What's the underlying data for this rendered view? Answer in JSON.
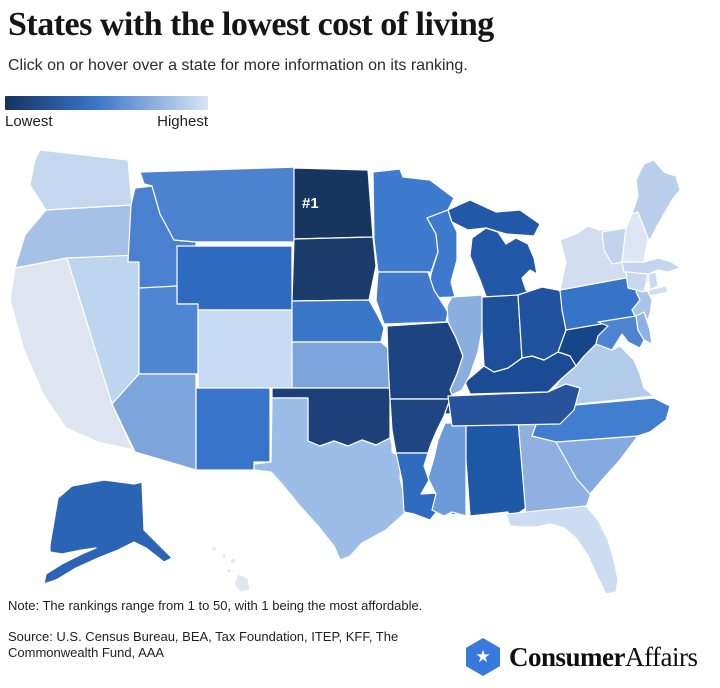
{
  "header": {
    "title": "States with the lowest cost of living",
    "subtitle": "Click on or hover over a state for more information on its ranking."
  },
  "legend": {
    "low_label": "Lowest",
    "high_label": "Highest",
    "gradient": [
      "#14335f",
      "#3a76c8",
      "#d8e4f5"
    ]
  },
  "map": {
    "rank_label": "#1",
    "states": [
      {
        "id": "WA",
        "name": "Washington",
        "color": "#c3d7ef"
      },
      {
        "id": "OR",
        "name": "Oregon",
        "color": "#a5c1e5"
      },
      {
        "id": "CA",
        "name": "California",
        "color": "#dee5f0"
      },
      {
        "id": "NV",
        "name": "Nevada",
        "color": "#bed5f0"
      },
      {
        "id": "ID",
        "name": "Idaho",
        "color": "#4a80d0"
      },
      {
        "id": "MT",
        "name": "Montana",
        "color": "#4d82d1"
      },
      {
        "id": "WY",
        "name": "Wyoming",
        "color": "#2e6abf"
      },
      {
        "id": "UT",
        "name": "Utah",
        "color": "#4e86d4"
      },
      {
        "id": "CO",
        "name": "Colorado",
        "color": "#c5daf3"
      },
      {
        "id": "AZ",
        "name": "Arizona",
        "color": "#7ca5dc"
      },
      {
        "id": "NM",
        "name": "New Mexico",
        "color": "#3874c9"
      },
      {
        "id": "ND",
        "name": "North Dakota",
        "color": "#17365f"
      },
      {
        "id": "SD",
        "name": "South Dakota",
        "color": "#1b3c6b"
      },
      {
        "id": "NE",
        "name": "Nebraska",
        "color": "#3a76c6"
      },
      {
        "id": "KS",
        "name": "Kansas",
        "color": "#7da5dc"
      },
      {
        "id": "OK",
        "name": "Oklahoma",
        "color": "#1c4077"
      },
      {
        "id": "TX",
        "name": "Texas",
        "color": "#9bbde7"
      },
      {
        "id": "MN",
        "name": "Minnesota",
        "color": "#3e7acd"
      },
      {
        "id": "IA",
        "name": "Iowa",
        "color": "#4379cd"
      },
      {
        "id": "MO",
        "name": "Missouri",
        "color": "#1d4480"
      },
      {
        "id": "AR",
        "name": "Arkansas",
        "color": "#1f4683"
      },
      {
        "id": "LA",
        "name": "Louisiana",
        "color": "#2f6cc0"
      },
      {
        "id": "MS",
        "name": "Mississippi",
        "color": "#6d9ad8"
      },
      {
        "id": "WI",
        "name": "Wisconsin",
        "color": "#3d79cc"
      },
      {
        "id": "IL",
        "name": "Illinois",
        "color": "#8aaede"
      },
      {
        "id": "MI",
        "name": "Michigan",
        "color": "#2158a7"
      },
      {
        "id": "IN",
        "name": "Indiana",
        "color": "#1d4f9b"
      },
      {
        "id": "OH",
        "name": "Ohio",
        "color": "#20529f"
      },
      {
        "id": "KY",
        "name": "Kentucky",
        "color": "#1c4b95"
      },
      {
        "id": "TN",
        "name": "Tennessee",
        "color": "#26539c"
      },
      {
        "id": "AL",
        "name": "Alabama",
        "color": "#2058a8"
      },
      {
        "id": "GA",
        "name": "Georgia",
        "color": "#8fb0e0"
      },
      {
        "id": "FL",
        "name": "Florida",
        "color": "#ccdcf2"
      },
      {
        "id": "SC",
        "name": "South Carolina",
        "color": "#85aadf"
      },
      {
        "id": "NC",
        "name": "North Carolina",
        "color": "#417ecf"
      },
      {
        "id": "VA",
        "name": "Virginia",
        "color": "#b3cbeb"
      },
      {
        "id": "WV",
        "name": "West Virginia",
        "color": "#174688"
      },
      {
        "id": "MD",
        "name": "Maryland",
        "color": "#4c84d2"
      },
      {
        "id": "DE",
        "name": "Delaware",
        "color": "#8fb2e3"
      },
      {
        "id": "NJ",
        "name": "New Jersey",
        "color": "#a9c4e8"
      },
      {
        "id": "PA",
        "name": "Pennsylvania",
        "color": "#3674c8"
      },
      {
        "id": "NY",
        "name": "New York",
        "color": "#d2ddf0"
      },
      {
        "id": "CT",
        "name": "Connecticut",
        "color": "#c7d8f0"
      },
      {
        "id": "RI",
        "name": "Rhode Island",
        "color": "#cadaf1"
      },
      {
        "id": "MA",
        "name": "Massachusetts",
        "color": "#c3d5ef"
      },
      {
        "id": "VT",
        "name": "Vermont",
        "color": "#c0d4ee"
      },
      {
        "id": "NH",
        "name": "New Hampshire",
        "color": "#dce6f5"
      },
      {
        "id": "ME",
        "name": "Maine",
        "color": "#b9cfec"
      },
      {
        "id": "AK",
        "name": "Alaska",
        "color": "#2b64b4"
      },
      {
        "id": "HI",
        "name": "Hawaii",
        "color": "#e0e7f1"
      }
    ]
  },
  "footer": {
    "note": "Note: The rankings range from 1 to 50, with 1 being the most affordable.",
    "source": "Source: U.S. Census Bureau, BEA, Tax Foundation, ITEP, KFF, The Commonwealth Fund, AAA",
    "logo": {
      "brand_bold": "Consumer",
      "brand_regular": "Affairs",
      "icon": "star-hexagon",
      "hex_color": "#3879dd",
      "star": "★"
    }
  }
}
